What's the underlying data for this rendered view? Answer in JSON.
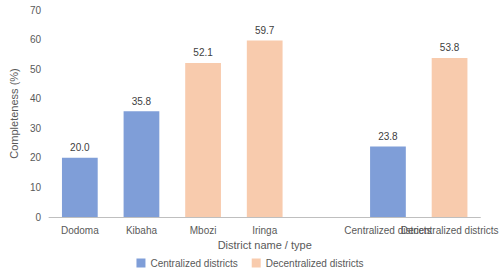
{
  "chart_data": {
    "type": "bar",
    "x_label": "District name / type",
    "y_label": "Completeness (%)",
    "categories": [
      "Dodoma",
      "Kibaha",
      "Mbozi",
      "Iringa",
      null,
      "Centralized districts",
      "Decentralized districts"
    ],
    "series": [
      {
        "name": "Centralized districts",
        "color": "#7f9ed8",
        "values": [
          20.0,
          35.8,
          null,
          null,
          null,
          23.8,
          null
        ],
        "value_labels": [
          "20.0",
          "35.8",
          null,
          null,
          null,
          "23.8",
          null
        ]
      },
      {
        "name": "Decentralized districts",
        "color": "#f8cbad",
        "values": [
          null,
          null,
          52.1,
          59.7,
          null,
          null,
          53.8
        ],
        "value_labels": [
          null,
          null,
          "52.1",
          "59.7",
          null,
          null,
          "53.8"
        ]
      }
    ],
    "ylim": [
      0,
      70
    ],
    "yticks": [
      0,
      10,
      20,
      30,
      40,
      50,
      60,
      70
    ],
    "grid": false,
    "data_labels": true,
    "legend": "bottom"
  }
}
